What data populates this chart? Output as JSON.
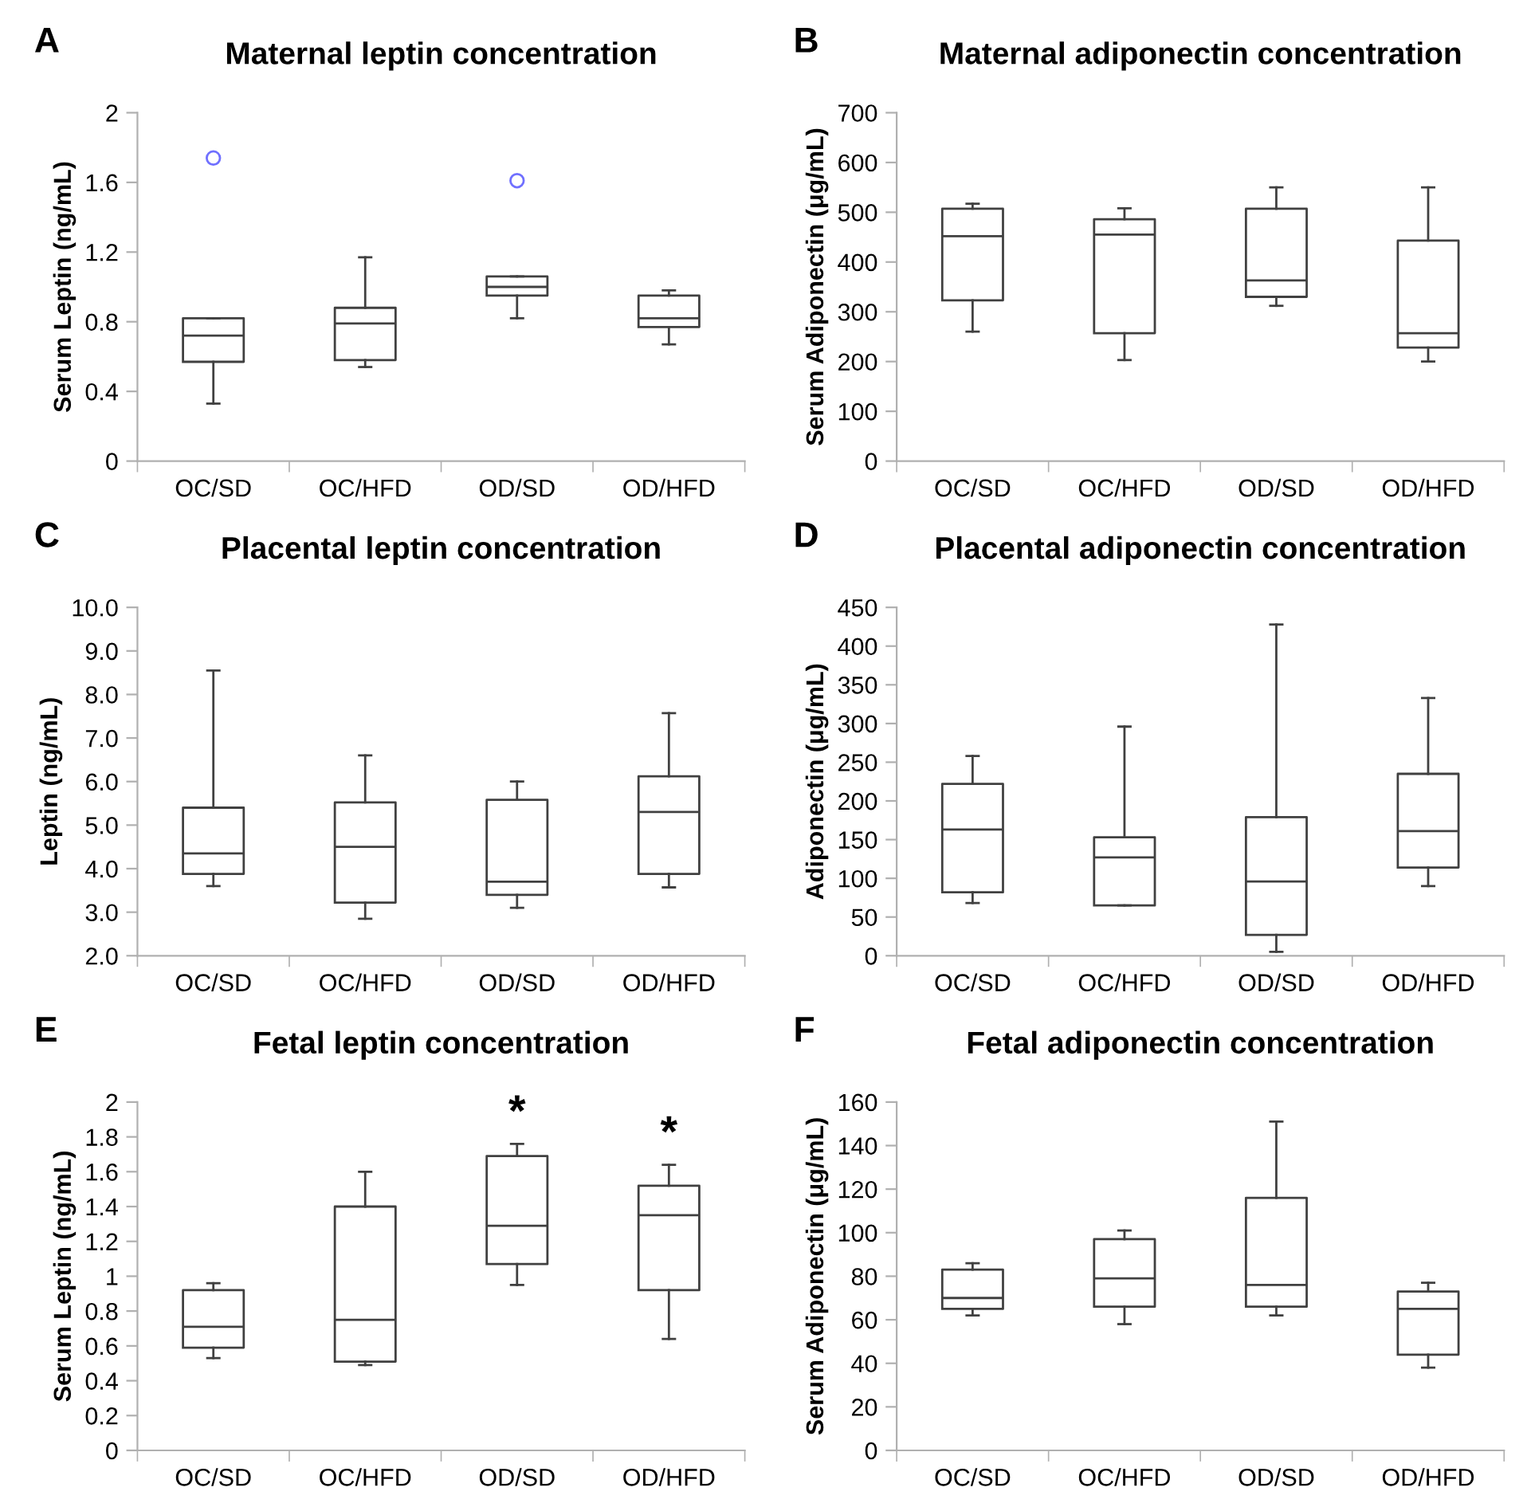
{
  "chart_data": [
    {
      "type": "box",
      "title": "Maternal leptin concentration",
      "ylabel": "Serum Leptin (ng/mL)",
      "annotations": [
        "A"
      ],
      "categories": [
        "OC/SD",
        "OC/HFD",
        "OD/SD",
        "OD/HFD"
      ],
      "color": "#404040",
      "ylim": [
        0,
        2
      ],
      "yticks": [
        0,
        0.4,
        0.8,
        1.2,
        1.6,
        2
      ],
      "grid": false,
      "legend": false,
      "boxes": [
        {
          "low": 0.33,
          "q1": 0.57,
          "median": 0.72,
          "q3": 0.82,
          "high": 0.82,
          "outliers": [
            1.74
          ]
        },
        {
          "low": 0.54,
          "q1": 0.58,
          "median": 0.79,
          "q3": 0.88,
          "high": 1.17
        },
        {
          "low": 0.82,
          "q1": 0.95,
          "median": 1.0,
          "q3": 1.06,
          "high": 1.06,
          "outliers": [
            1.61
          ]
        },
        {
          "low": 0.67,
          "q1": 0.77,
          "median": 0.82,
          "q3": 0.95,
          "high": 0.98
        }
      ]
    },
    {
      "type": "box",
      "title": "Maternal adiponectin concentration",
      "ylabel": "Serum Adiponectin (μg/mL)",
      "annotations": [
        "B"
      ],
      "categories": [
        "OC/SD",
        "OC/HFD",
        "OD/SD",
        "OD/HFD"
      ],
      "color": "#404040",
      "ylim": [
        0,
        700
      ],
      "yticks": [
        0,
        100,
        200,
        300,
        400,
        500,
        600,
        700
      ],
      "grid": false,
      "legend": false,
      "boxes": [
        {
          "low": 260,
          "q1": 323,
          "median": 452,
          "q3": 507,
          "high": 517
        },
        {
          "low": 203,
          "q1": 257,
          "median": 455,
          "q3": 486,
          "high": 508
        },
        {
          "low": 312,
          "q1": 330,
          "median": 363,
          "q3": 507,
          "high": 550
        },
        {
          "low": 200,
          "q1": 228,
          "median": 257,
          "q3": 443,
          "high": 550
        }
      ]
    },
    {
      "type": "box",
      "title": "Placental leptin concentration",
      "ylabel": "Leptin (ng/mL)",
      "annotations": [
        "C"
      ],
      "categories": [
        "OC/SD",
        "OC/HFD",
        "OD/SD",
        "OD/HFD"
      ],
      "color": "#404040",
      "ylim": [
        2,
        10
      ],
      "yticks": [
        {
          "value": 2,
          "label": "2.0"
        },
        {
          "value": 3,
          "label": "3.0"
        },
        {
          "value": 4,
          "label": "4.0"
        },
        {
          "value": 5,
          "label": "5.0"
        },
        {
          "value": 6,
          "label": "6.0"
        },
        {
          "value": 7,
          "label": "7.0"
        },
        {
          "value": 8,
          "label": "8.0"
        },
        {
          "value": 9,
          "label": "9.0"
        },
        {
          "value": 10,
          "label": "10.0"
        }
      ],
      "grid": false,
      "legend": false,
      "boxes": [
        {
          "low": 3.6,
          "q1": 3.88,
          "median": 4.35,
          "q3": 5.4,
          "high": 8.55
        },
        {
          "low": 2.85,
          "q1": 3.22,
          "median": 4.5,
          "q3": 5.52,
          "high": 6.6
        },
        {
          "low": 3.1,
          "q1": 3.4,
          "median": 3.7,
          "q3": 5.58,
          "high": 6.0
        },
        {
          "low": 3.57,
          "q1": 3.88,
          "median": 5.3,
          "q3": 6.12,
          "high": 7.57
        }
      ]
    },
    {
      "type": "box",
      "title": "Placental adiponectin concentration",
      "ylabel": "Adiponectin (μg/mL)",
      "annotations": [
        "D"
      ],
      "categories": [
        "OC/SD",
        "OC/HFD",
        "OD/SD",
        "OD/HFD"
      ],
      "color": "#404040",
      "ylim": [
        0,
        450
      ],
      "yticks": [
        0,
        50,
        100,
        150,
        200,
        250,
        300,
        350,
        400,
        450
      ],
      "grid": false,
      "legend": false,
      "boxes": [
        {
          "low": 68,
          "q1": 82,
          "median": 163,
          "q3": 222,
          "high": 258
        },
        {
          "low": 65,
          "q1": 65,
          "median": 127,
          "q3": 153,
          "high": 296
        },
        {
          "low": 5,
          "q1": 27,
          "median": 96,
          "q3": 179,
          "high": 428
        },
        {
          "low": 90,
          "q1": 114,
          "median": 161,
          "q3": 235,
          "high": 333
        }
      ]
    },
    {
      "type": "box",
      "title": "Fetal leptin concentration",
      "ylabel": "Serum Leptin (ng/mL)",
      "annotations": [
        "E",
        "*",
        "*"
      ],
      "categories": [
        "OC/SD",
        "OC/HFD",
        "OD/SD",
        "OD/HFD"
      ],
      "color": "#404040",
      "ylim": [
        0,
        2
      ],
      "yticks": [
        0,
        0.2,
        0.4,
        0.6,
        0.8,
        1,
        1.2,
        1.4,
        1.6,
        1.8,
        2
      ],
      "grid": false,
      "legend": false,
      "boxes": [
        {
          "low": 0.53,
          "q1": 0.59,
          "median": 0.71,
          "q3": 0.92,
          "high": 0.96
        },
        {
          "low": 0.49,
          "q1": 0.51,
          "median": 0.75,
          "q3": 1.4,
          "high": 1.6
        },
        {
          "low": 0.95,
          "q1": 1.07,
          "median": 1.29,
          "q3": 1.69,
          "high": 1.76
        },
        {
          "low": 0.64,
          "q1": 0.92,
          "median": 1.35,
          "q3": 1.52,
          "high": 1.64
        }
      ]
    },
    {
      "type": "box",
      "title": "Fetal adiponectin concentration",
      "ylabel": "Serum Adiponectin (μg/mL)",
      "annotations": [
        "F"
      ],
      "categories": [
        "OC/SD",
        "OC/HFD",
        "OD/SD",
        "OD/HFD"
      ],
      "color": "#404040",
      "ylim": [
        0,
        160
      ],
      "yticks": [
        0,
        20,
        40,
        60,
        80,
        100,
        120,
        140,
        160
      ],
      "grid": false,
      "legend": false,
      "boxes": [
        {
          "low": 62,
          "q1": 65,
          "median": 70,
          "q3": 83,
          "high": 86
        },
        {
          "low": 58,
          "q1": 66,
          "median": 79,
          "q3": 97,
          "high": 101
        },
        {
          "low": 62,
          "q1": 66,
          "median": 76,
          "q3": 116,
          "high": 151
        },
        {
          "low": 38,
          "q1": 44,
          "median": 65,
          "q3": 73,
          "high": 77
        }
      ]
    }
  ]
}
